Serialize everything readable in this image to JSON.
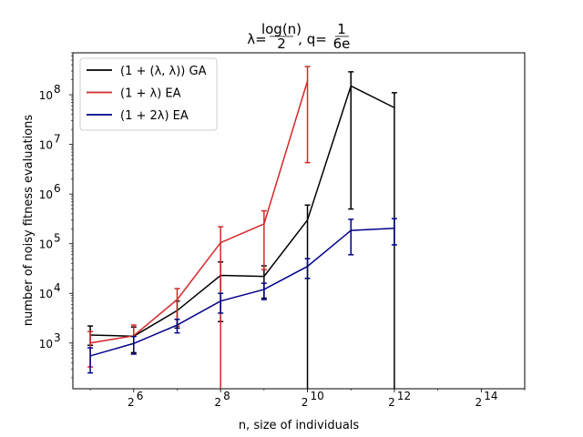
{
  "chart_data": {
    "type": "line",
    "title": "λ=log(n)/2, q=1/(6e)",
    "title_parts": {
      "lambda": "λ=",
      "lambda_num": "log(n)",
      "lambda_den": "2",
      "sep": ", q=",
      "q_num": "1",
      "q_den": "6e"
    },
    "xlabel": "n, size of individuals",
    "ylabel": "number of noisy fitness evaluations",
    "xscale": "log2",
    "yscale": "log10",
    "xlim": [
      24.25,
      32768
    ],
    "ylim": [
      120,
      700000000
    ],
    "x_ticks": [
      {
        "value": 64,
        "base": "2",
        "exp": "6"
      },
      {
        "value": 256,
        "base": "2",
        "exp": "8"
      },
      {
        "value": 1024,
        "base": "2",
        "exp": "10"
      },
      {
        "value": 4096,
        "base": "2",
        "exp": "12"
      },
      {
        "value": 16384,
        "base": "2",
        "exp": "14"
      }
    ],
    "y_ticks": [
      {
        "value": 1000,
        "base": "10",
        "exp": "3"
      },
      {
        "value": 10000,
        "base": "10",
        "exp": "4"
      },
      {
        "value": 100000,
        "base": "10",
        "exp": "5"
      },
      {
        "value": 1000000,
        "base": "10",
        "exp": "6"
      },
      {
        "value": 10000000,
        "base": "10",
        "exp": "7"
      },
      {
        "value": 100000000,
        "base": "10",
        "exp": "8"
      }
    ],
    "legend_position": "top-left",
    "grid": false,
    "series": [
      {
        "name": "(1 + (λ, λ)) GA",
        "color": "#000000",
        "points": [
          {
            "x": 32,
            "y": 1450,
            "lo": 900,
            "hi": 2200
          },
          {
            "x": 64,
            "y": 1370,
            "lo": 640,
            "hi": 2100
          },
          {
            "x": 128,
            "y": 4500,
            "lo": 2000,
            "hi": 7000
          },
          {
            "x": 256,
            "y": 23000,
            "lo": 2700,
            "hi": 43000
          },
          {
            "x": 512,
            "y": 22000,
            "lo": 8000,
            "hi": 36000
          },
          {
            "x": 1024,
            "y": 300000,
            "lo": 120,
            "hi": 600000
          },
          {
            "x": 2048,
            "y": 150000000,
            "lo": 500000,
            "hi": 290000000
          },
          {
            "x": 4096,
            "y": 55000000,
            "lo": 120,
            "hi": 110000000
          }
        ]
      },
      {
        "name": "(1 + λ) EA",
        "color": "#d62728",
        "points": [
          {
            "x": 32,
            "y": 1000,
            "lo": 330,
            "hi": 1700
          },
          {
            "x": 64,
            "y": 1400,
            "lo": 600,
            "hi": 2300
          },
          {
            "x": 128,
            "y": 7500,
            "lo": 2200,
            "hi": 12500
          },
          {
            "x": 256,
            "y": 105000,
            "lo": 120,
            "hi": 220000
          },
          {
            "x": 512,
            "y": 250000,
            "lo": 30000,
            "hi": 460000
          },
          {
            "x": 1024,
            "y": 190000000,
            "lo": 4300000,
            "hi": 370000000
          }
        ]
      },
      {
        "name": "(1 + 2λ) EA",
        "color": "#00008b",
        "points": [
          {
            "x": 32,
            "y": 550,
            "lo": 250,
            "hi": 800
          },
          {
            "x": 64,
            "y": 980,
            "lo": 600,
            "hi": 1350
          },
          {
            "x": 128,
            "y": 2300,
            "lo": 1600,
            "hi": 3000
          },
          {
            "x": 256,
            "y": 7000,
            "lo": 4000,
            "hi": 10000
          },
          {
            "x": 512,
            "y": 12000,
            "lo": 7500,
            "hi": 16000
          },
          {
            "x": 1024,
            "y": 35000,
            "lo": 20000,
            "hi": 50000
          },
          {
            "x": 2048,
            "y": 185000,
            "lo": 60000,
            "hi": 310000
          },
          {
            "x": 4096,
            "y": 205000,
            "lo": 95000,
            "hi": 320000
          }
        ]
      }
    ]
  }
}
